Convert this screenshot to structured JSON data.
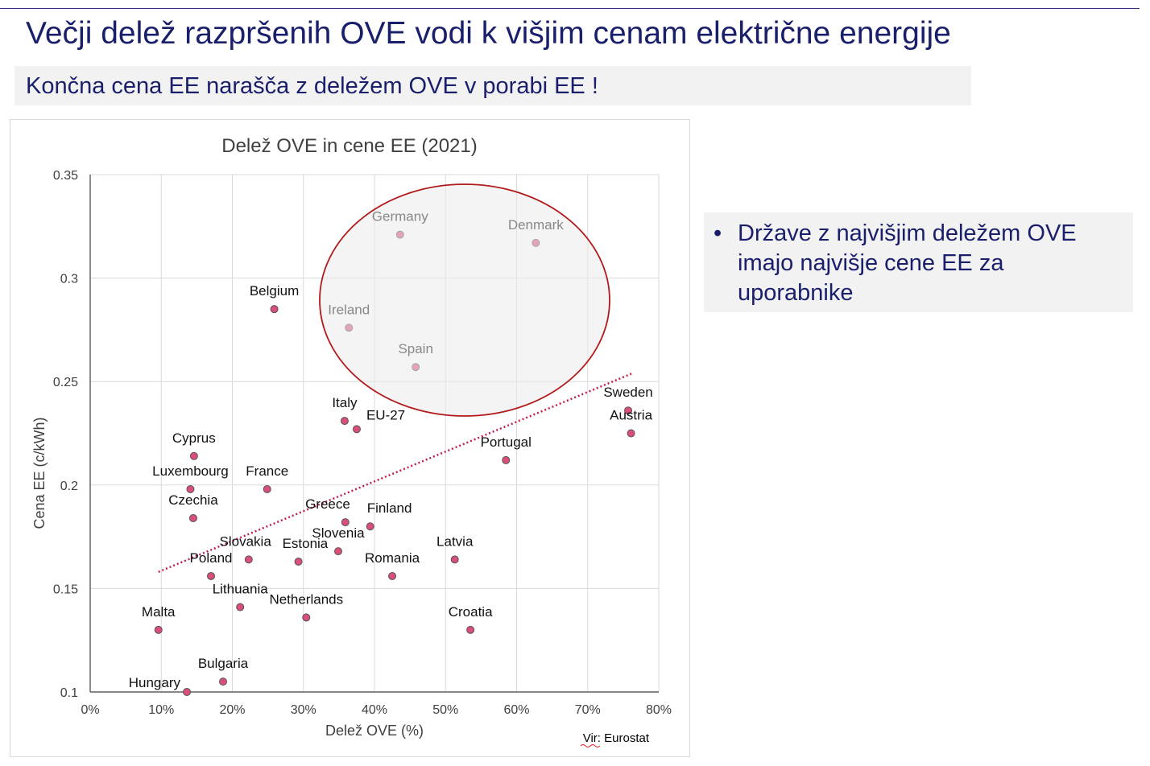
{
  "header": {
    "title": "Večji delež razpršenih OVE vodi k višjim cenam električne energije",
    "subtitle": "Končna cena EE narašča z deležem OVE v porabi EE !"
  },
  "side_note": {
    "bullet": "•",
    "text": "Države z najvišjim deležem OVE imajo najvišje cene EE za uporabnike"
  },
  "source": "Vir: Eurostat",
  "chart_data": {
    "type": "scatter",
    "title": "Delež OVE in cene EE (2021)",
    "xlabel": "Delež OVE (%)",
    "ylabel": "Cena EE (c/kWh)",
    "xlim": [
      0,
      80
    ],
    "ylim": [
      0.1,
      0.35
    ],
    "xticks": [
      "0%",
      "10%",
      "20%",
      "30%",
      "40%",
      "50%",
      "60%",
      "70%",
      "80%"
    ],
    "yticks": [
      "0.1",
      "0.15",
      "0.2",
      "0.25",
      "0.3",
      "0.35"
    ],
    "grid": true,
    "point_color": "#d94f7a",
    "trendline": {
      "type": "linear",
      "color": "#c0204a",
      "x": [
        9.6,
        76.3
      ],
      "y": [
        0.158,
        0.254
      ]
    },
    "highlight": {
      "shape": "ellipse",
      "color": "#b2191b",
      "members": [
        "Germany",
        "Denmark",
        "Ireland",
        "Spain"
      ]
    },
    "points": [
      {
        "label": "Germany",
        "x": 43.6,
        "y": 0.321
      },
      {
        "label": "Denmark",
        "x": 62.7,
        "y": 0.317
      },
      {
        "label": "Belgium",
        "x": 25.9,
        "y": 0.285
      },
      {
        "label": "Ireland",
        "x": 36.4,
        "y": 0.276
      },
      {
        "label": "Spain",
        "x": 45.8,
        "y": 0.257
      },
      {
        "label": "Italy",
        "x": 35.8,
        "y": 0.231
      },
      {
        "label": "EU-27",
        "x": 37.5,
        "y": 0.227
      },
      {
        "label": "Sweden",
        "x": 75.7,
        "y": 0.236
      },
      {
        "label": "Austria",
        "x": 76.1,
        "y": 0.225
      },
      {
        "label": "Portugal",
        "x": 58.5,
        "y": 0.212
      },
      {
        "label": "Cyprus",
        "x": 14.6,
        "y": 0.214
      },
      {
        "label": "Luxembourg",
        "x": 14.1,
        "y": 0.198
      },
      {
        "label": "France",
        "x": 24.9,
        "y": 0.198
      },
      {
        "label": "Czechia",
        "x": 14.5,
        "y": 0.184
      },
      {
        "label": "Greece",
        "x": 35.9,
        "y": 0.182
      },
      {
        "label": "Finland",
        "x": 39.4,
        "y": 0.18
      },
      {
        "label": "Slovenia",
        "x": 34.9,
        "y": 0.168
      },
      {
        "label": "Slovakia",
        "x": 22.3,
        "y": 0.164
      },
      {
        "label": "Estonia",
        "x": 29.3,
        "y": 0.163
      },
      {
        "label": "Latvia",
        "x": 51.3,
        "y": 0.164
      },
      {
        "label": "Romania",
        "x": 42.5,
        "y": 0.156
      },
      {
        "label": "Poland",
        "x": 17.0,
        "y": 0.156
      },
      {
        "label": "Lithuania",
        "x": 21.1,
        "y": 0.141
      },
      {
        "label": "Netherlands",
        "x": 30.4,
        "y": 0.136
      },
      {
        "label": "Malta",
        "x": 9.6,
        "y": 0.13
      },
      {
        "label": "Croatia",
        "x": 53.5,
        "y": 0.13
      },
      {
        "label": "Bulgaria",
        "x": 18.7,
        "y": 0.105
      },
      {
        "label": "Hungary",
        "x": 13.6,
        "y": 0.1
      }
    ]
  }
}
